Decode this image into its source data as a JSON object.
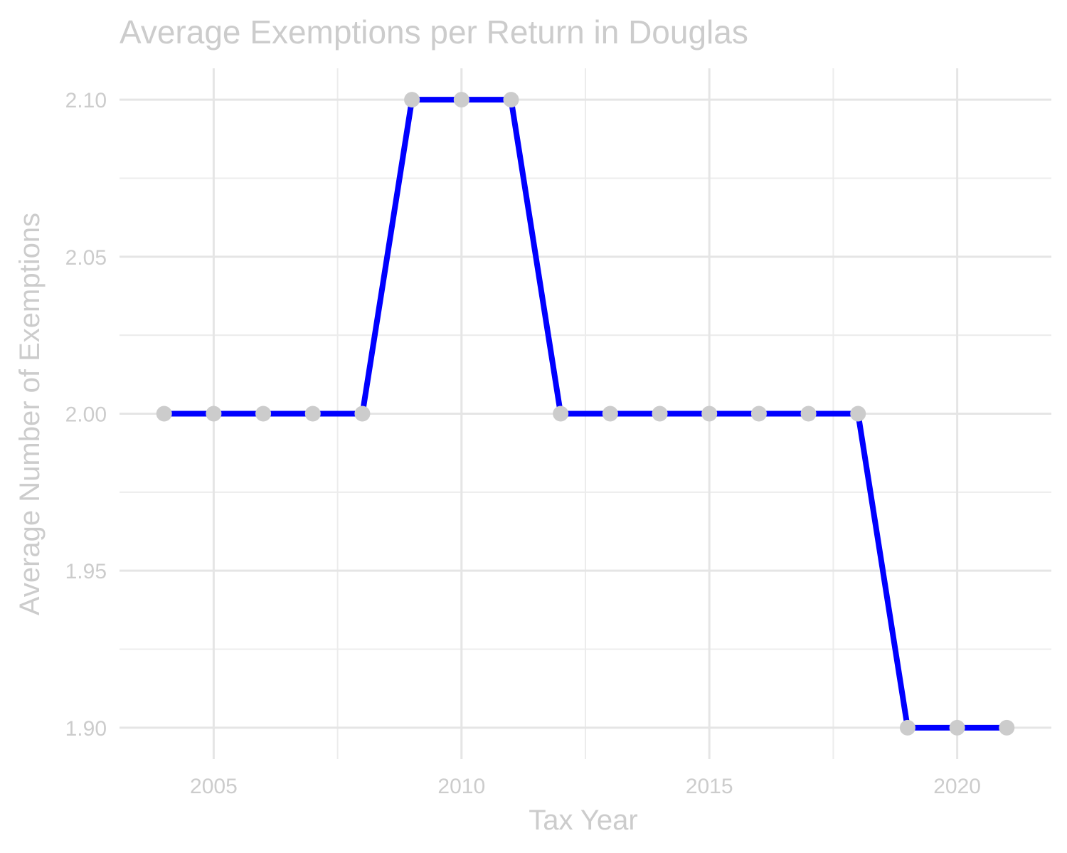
{
  "chart_data": {
    "type": "line",
    "title": "Average Exemptions per Return in Douglas",
    "xlabel": "Tax Year",
    "ylabel": "Average Number of Exemptions",
    "x": [
      2004,
      2005,
      2006,
      2007,
      2008,
      2009,
      2010,
      2011,
      2012,
      2013,
      2014,
      2015,
      2016,
      2017,
      2018,
      2019,
      2020,
      2021
    ],
    "series": [
      {
        "values": [
          2.0,
          2.0,
          2.0,
          2.0,
          2.0,
          2.1,
          2.1,
          2.1,
          2.0,
          2.0,
          2.0,
          2.0,
          2.0,
          2.0,
          2.0,
          1.9,
          1.9,
          1.9
        ]
      }
    ],
    "xlim": [
      2003.1,
      2021.9
    ],
    "ylim": [
      1.89,
      2.11
    ],
    "x_ticks": [
      2005,
      2010,
      2015,
      2020
    ],
    "x_tick_labels": [
      "2005",
      "2010",
      "2015",
      "2020"
    ],
    "y_ticks": [
      1.9,
      1.95,
      2.0,
      2.05,
      2.1
    ],
    "y_tick_labels": [
      "1.90",
      "1.95",
      "2.00",
      "2.05",
      "2.10"
    ],
    "grid": true,
    "line_color": "#0000ff",
    "point_color": "#cccccc",
    "text_color": "#cccccc",
    "grid_color": "#e5e5e5"
  }
}
